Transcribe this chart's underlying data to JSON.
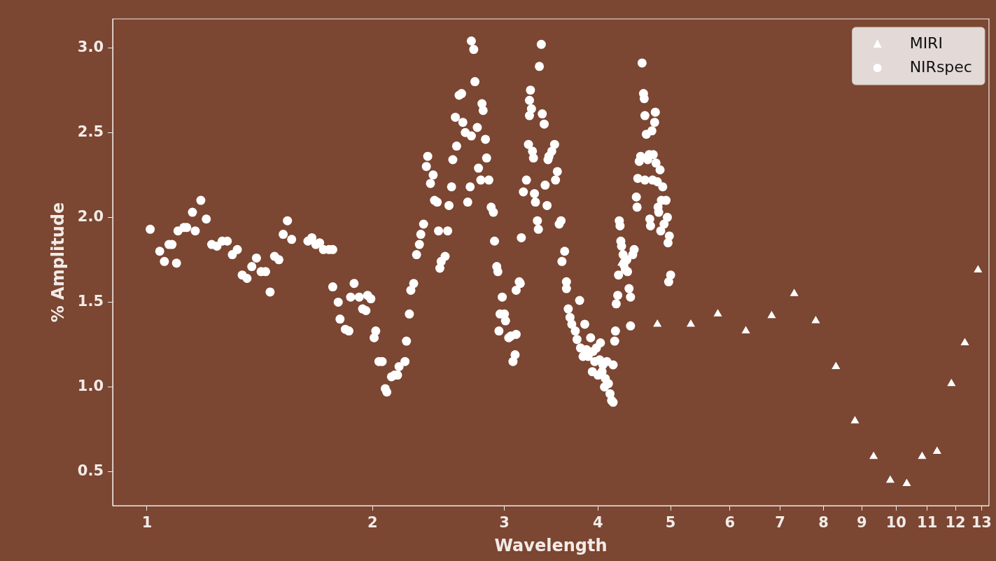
{
  "chart_data": {
    "type": "scatter",
    "xlabel": "Wavelength",
    "ylabel": "% Amplitude",
    "log": "x",
    "grid": false,
    "legend": "top right",
    "xlim": [
      0.9,
      13.3
    ],
    "xticks": [
      1,
      2,
      3,
      4,
      5,
      6,
      7,
      8,
      9,
      10,
      11,
      12,
      13
    ],
    "ylim": [
      0.3,
      3.17
    ],
    "yticks": [
      {
        "value": 0.5,
        "label": "0.5"
      },
      {
        "value": 1,
        "label": "1.0"
      },
      {
        "value": 1.5,
        "label": "1.5"
      },
      {
        "value": 2,
        "label": "2.0"
      },
      {
        "value": 2.5,
        "label": "2.5"
      },
      {
        "value": 3,
        "label": "3.0"
      }
    ],
    "series": [
      {
        "name": "MIRI",
        "color": "#ffffff",
        "marker": "triangle",
        "x": [
          4.3,
          4.8,
          5.32,
          5.78,
          6.3,
          6.82,
          7.31,
          7.81,
          8.31,
          8.81,
          9.33,
          9.82,
          10.33,
          10.83,
          11.34,
          11.85,
          12.35,
          12.86
        ],
        "values": [
          1.73,
          1.37,
          1.37,
          1.43,
          1.33,
          1.42,
          1.55,
          1.39,
          1.12,
          0.8,
          0.59,
          0.45,
          0.43,
          0.59,
          0.62,
          1.02,
          1.26,
          1.69
        ]
      },
      {
        "name": "NIRspec",
        "color": "#ffffff",
        "marker": "circle",
        "x": [
          1.01,
          1.04,
          1.055,
          1.07,
          1.08,
          1.095,
          1.1,
          1.12,
          1.13,
          1.15,
          1.16,
          1.18,
          1.2,
          1.22,
          1.24,
          1.26,
          1.28,
          1.3,
          1.32,
          1.34,
          1.36,
          1.38,
          1.4,
          1.42,
          1.44,
          1.46,
          1.48,
          1.5,
          1.52,
          1.54,
          1.56,
          1.64,
          1.66,
          1.68,
          1.7,
          1.72,
          1.75,
          1.77,
          1.77,
          1.8,
          1.81,
          1.84,
          1.86,
          1.87,
          1.89,
          1.92,
          1.94,
          1.96,
          1.97,
          1.99,
          2.01,
          2.02,
          2.04,
          2.06,
          2.08,
          2.09,
          2.12,
          2.14,
          2.16,
          2.17,
          2.21,
          2.22,
          2.24,
          2.25,
          2.27,
          2.29,
          2.31,
          2.32,
          2.34,
          2.36,
          2.37,
          2.39,
          2.41,
          2.42,
          2.44,
          2.45,
          2.46,
          2.47,
          2.5,
          2.52,
          2.53,
          2.55,
          2.56,
          2.58,
          2.59,
          2.61,
          2.63,
          2.64,
          2.66,
          2.68,
          2.7,
          2.71,
          2.71,
          2.73,
          2.74,
          2.76,
          2.77,
          2.79,
          2.8,
          2.81,
          2.83,
          2.84,
          2.86,
          2.88,
          2.9,
          2.91,
          2.93,
          2.94,
          2.95,
          2.96,
          2.98,
          3.0,
          3.01,
          3.04,
          3.06,
          3.08,
          3.1,
          3.11,
          3.11,
          3.14,
          3.15,
          3.16,
          3.18,
          3.21,
          3.23,
          3.24,
          3.24,
          3.25,
          3.26,
          3.27,
          3.28,
          3.29,
          3.3,
          3.32,
          3.33,
          3.34,
          3.36,
          3.37,
          3.39,
          3.4,
          3.42,
          3.43,
          3.44,
          3.47,
          3.5,
          3.51,
          3.53,
          3.55,
          3.57,
          3.58,
          3.61,
          3.63,
          3.63,
          3.65,
          3.67,
          3.69,
          3.73,
          3.75,
          3.78,
          3.79,
          3.82,
          3.84,
          3.86,
          3.88,
          3.91,
          3.93,
          3.94,
          3.96,
          3.98,
          4.0,
          4.02,
          4.03,
          4.05,
          4.06,
          4.08,
          4.09,
          4.11,
          4.13,
          4.15,
          4.17,
          4.19,
          4.19,
          4.21,
          4.22,
          4.23,
          4.25,
          4.26,
          4.27,
          4.28,
          4.29,
          4.3,
          4.32,
          4.33,
          4.35,
          4.37,
          4.38,
          4.4,
          4.42,
          4.42,
          4.45,
          4.47,
          4.5,
          4.51,
          4.52,
          4.54,
          4.56,
          4.58,
          4.6,
          4.61,
          4.62,
          4.62,
          4.64,
          4.66,
          4.68,
          4.69,
          4.7,
          4.72,
          4.73,
          4.74,
          4.76,
          4.77,
          4.78,
          4.8,
          4.81,
          4.82,
          4.84,
          4.85,
          4.86,
          4.88,
          4.9,
          4.93,
          4.95,
          4.96,
          4.97,
          4.98,
          5.0
        ],
        "values": [
          1.93,
          1.8,
          1.74,
          1.84,
          1.84,
          1.73,
          1.92,
          1.94,
          1.94,
          2.03,
          1.92,
          2.1,
          1.99,
          1.84,
          1.83,
          1.86,
          1.86,
          1.78,
          1.81,
          1.66,
          1.64,
          1.71,
          1.76,
          1.68,
          1.68,
          1.56,
          1.77,
          1.75,
          1.9,
          1.98,
          1.87,
          1.86,
          1.88,
          1.84,
          1.85,
          1.81,
          1.81,
          1.81,
          1.59,
          1.5,
          1.4,
          1.34,
          1.33,
          1.53,
          1.61,
          1.53,
          1.46,
          1.45,
          1.54,
          1.52,
          1.29,
          1.33,
          1.15,
          1.15,
          0.99,
          0.97,
          1.06,
          1.07,
          1.07,
          1.12,
          1.15,
          1.27,
          1.43,
          1.57,
          1.61,
          1.78,
          1.84,
          1.9,
          1.96,
          2.3,
          2.36,
          2.2,
          2.25,
          2.1,
          2.09,
          1.92,
          1.7,
          1.74,
          1.77,
          1.92,
          2.07,
          2.18,
          2.34,
          2.59,
          2.42,
          2.72,
          2.73,
          2.56,
          2.5,
          2.09,
          2.18,
          2.48,
          3.04,
          2.99,
          2.8,
          2.53,
          2.29,
          2.22,
          2.67,
          2.63,
          2.46,
          2.35,
          2.22,
          2.06,
          2.03,
          1.86,
          1.71,
          1.68,
          1.33,
          1.43,
          1.53,
          1.43,
          1.39,
          1.29,
          1.3,
          1.15,
          1.19,
          1.31,
          1.57,
          1.62,
          1.61,
          1.88,
          2.15,
          2.22,
          2.43,
          2.6,
          2.69,
          2.75,
          2.64,
          2.39,
          2.35,
          2.14,
          2.09,
          1.98,
          1.93,
          2.89,
          3.02,
          2.61,
          2.55,
          2.19,
          2.07,
          2.34,
          2.36,
          2.39,
          2.43,
          2.22,
          2.27,
          1.96,
          1.98,
          1.74,
          1.8,
          1.62,
          1.58,
          1.46,
          1.41,
          1.37,
          1.33,
          1.28,
          1.51,
          1.23,
          1.18,
          1.37,
          1.22,
          1.18,
          1.29,
          1.09,
          1.21,
          1.15,
          1.23,
          1.07,
          1.16,
          1.26,
          1.09,
          1.13,
          1.0,
          1.05,
          1.15,
          1.02,
          0.96,
          0.92,
          0.91,
          1.13,
          1.27,
          1.33,
          1.49,
          1.54,
          1.66,
          1.98,
          1.95,
          1.86,
          1.83,
          1.78,
          1.72,
          1.69,
          1.75,
          1.68,
          1.58,
          1.53,
          1.36,
          1.78,
          1.81,
          2.12,
          2.06,
          2.23,
          2.33,
          2.36,
          2.91,
          2.73,
          2.7,
          2.22,
          2.6,
          2.49,
          2.34,
          2.37,
          1.99,
          1.95,
          2.51,
          2.22,
          2.37,
          2.56,
          2.62,
          2.32,
          2.21,
          2.06,
          2.03,
          2.28,
          1.92,
          2.1,
          2.18,
          1.96,
          2.1,
          2.0,
          1.85,
          1.62,
          1.89,
          1.66
        ]
      }
    ]
  }
}
